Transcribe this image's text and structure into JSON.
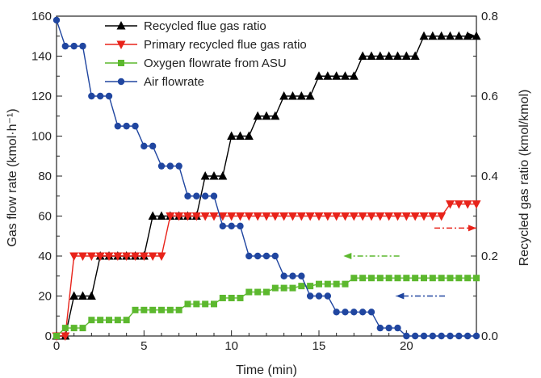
{
  "chart_data": {
    "type": "line",
    "xlabel": "Time (min)",
    "ylabel_left": "Gas flow rate (kmol·h⁻¹)",
    "ylabel_right": "Recycled gas ratio (kmol/kmol)",
    "xlim": [
      0,
      24
    ],
    "ylim_left": [
      0,
      160
    ],
    "ylim_right": [
      0,
      0.8
    ],
    "xticks": [
      "0",
      "5",
      "10",
      "15",
      "20"
    ],
    "yticks_left": [
      "0",
      "20",
      "40",
      "60",
      "80",
      "100",
      "120",
      "140",
      "160"
    ],
    "yticks_right": [
      "0.0",
      "0.2",
      "0.4",
      "0.6",
      "0.8"
    ],
    "legend_position": "top-center",
    "series": [
      {
        "name": "Recycled flue gas ratio",
        "axis": "right",
        "color": "#000000",
        "marker": "triangle-up",
        "x": [
          0,
          0.5,
          1,
          1.5,
          2,
          2.5,
          3,
          3.5,
          4,
          4.5,
          5,
          5.5,
          6,
          6.5,
          7,
          7.5,
          8,
          8.5,
          9,
          9.5,
          10,
          10.5,
          11,
          11.5,
          12,
          12.5,
          13,
          13.5,
          14,
          14.5,
          15,
          15.5,
          16,
          16.5,
          17,
          17.5,
          18,
          18.5,
          19,
          19.5,
          20,
          20.5,
          21,
          21.5,
          22,
          22.5,
          23,
          23.5,
          24
        ],
        "y": [
          0,
          0,
          0.1,
          0.1,
          0.1,
          0.2,
          0.2,
          0.2,
          0.2,
          0.2,
          0.2,
          0.3,
          0.3,
          0.3,
          0.3,
          0.3,
          0.3,
          0.4,
          0.4,
          0.4,
          0.5,
          0.5,
          0.5,
          0.55,
          0.55,
          0.55,
          0.6,
          0.6,
          0.6,
          0.6,
          0.65,
          0.65,
          0.65,
          0.65,
          0.65,
          0.7,
          0.7,
          0.7,
          0.7,
          0.7,
          0.7,
          0.7,
          0.75,
          0.75,
          0.75,
          0.75,
          0.75,
          0.75,
          0.75
        ]
      },
      {
        "name": "Primary recycled flue gas ratio",
        "axis": "right",
        "color": "#e8231a",
        "marker": "triangle-down",
        "x": [
          0,
          0.5,
          1,
          1.5,
          2,
          2.5,
          3,
          3.5,
          4,
          4.5,
          5,
          5.5,
          6,
          6.5,
          7,
          7.5,
          8,
          8.5,
          9,
          9.5,
          10,
          10.5,
          11,
          11.5,
          12,
          12.5,
          13,
          13.5,
          14,
          14.5,
          15,
          15.5,
          16,
          16.5,
          17,
          17.5,
          18,
          18.5,
          19,
          19.5,
          20,
          20.5,
          21,
          21.5,
          22,
          22.5,
          23,
          23.5,
          24
        ],
        "y": [
          0,
          0,
          0.2,
          0.2,
          0.2,
          0.2,
          0.2,
          0.2,
          0.2,
          0.2,
          0.2,
          0.2,
          0.2,
          0.3,
          0.3,
          0.3,
          0.3,
          0.3,
          0.3,
          0.3,
          0.3,
          0.3,
          0.3,
          0.3,
          0.3,
          0.3,
          0.3,
          0.3,
          0.3,
          0.3,
          0.3,
          0.3,
          0.3,
          0.3,
          0.3,
          0.3,
          0.3,
          0.3,
          0.3,
          0.3,
          0.3,
          0.3,
          0.3,
          0.3,
          0.3,
          0.33,
          0.33,
          0.33,
          0.33
        ]
      },
      {
        "name": "Oxygen flowrate from ASU",
        "axis": "left",
        "color": "#5cb82e",
        "marker": "square",
        "x": [
          0,
          0.5,
          1,
          1.5,
          2,
          2.5,
          3,
          3.5,
          4,
          4.5,
          5,
          5.5,
          6,
          6.5,
          7,
          7.5,
          8,
          8.5,
          9,
          9.5,
          10,
          10.5,
          11,
          11.5,
          12,
          12.5,
          13,
          13.5,
          14,
          14.5,
          15,
          15.5,
          16,
          16.5,
          17,
          17.5,
          18,
          18.5,
          19,
          19.5,
          20,
          20.5,
          21,
          21.5,
          22,
          22.5,
          23,
          23.5,
          24
        ],
        "y": [
          0,
          4,
          4,
          4,
          8,
          8,
          8,
          8,
          8,
          13,
          13,
          13,
          13,
          13,
          13,
          16,
          16,
          16,
          16,
          19,
          19,
          19,
          22,
          22,
          22,
          24,
          24,
          24,
          25,
          25,
          26,
          26,
          26,
          26,
          29,
          29,
          29,
          29,
          29,
          29,
          29,
          29,
          29,
          29,
          29,
          29,
          29,
          29,
          29
        ]
      },
      {
        "name": "Air flowrate",
        "axis": "left",
        "color": "#2046a0",
        "marker": "circle",
        "x": [
          0,
          0.5,
          1,
          1.5,
          2,
          2.5,
          3,
          3.5,
          4,
          4.5,
          5,
          5.5,
          6,
          6.5,
          7,
          7.5,
          8,
          8.5,
          9,
          9.5,
          10,
          10.5,
          11,
          11.5,
          12,
          12.5,
          13,
          13.5,
          14,
          14.5,
          15,
          15.5,
          16,
          16.5,
          17,
          17.5,
          18,
          18.5,
          19,
          19.5,
          20,
          20.5,
          21,
          21.5,
          22,
          22.5,
          23,
          23.5,
          24
        ],
        "y": [
          158,
          145,
          145,
          145,
          120,
          120,
          120,
          105,
          105,
          105,
          95,
          95,
          85,
          85,
          85,
          70,
          70,
          70,
          70,
          55,
          55,
          55,
          40,
          40,
          40,
          40,
          30,
          30,
          30,
          20,
          20,
          20,
          12,
          12,
          12,
          12,
          12,
          4,
          4,
          4,
          0,
          0,
          0,
          0,
          0,
          0,
          0,
          0,
          0
        ]
      }
    ],
    "annotations": [
      {
        "type": "arrow",
        "direction": "right",
        "color": "#000000",
        "from": [
          21.6,
          0.75
        ],
        "to": [
          24,
          0.75
        ]
      },
      {
        "type": "arrow",
        "direction": "right",
        "color": "#e8231a",
        "from": [
          21.6,
          0.27
        ],
        "to": [
          24,
          0.27
        ]
      },
      {
        "type": "arrow",
        "direction": "left",
        "color": "#5cb82e",
        "from": [
          19.6,
          0.2
        ],
        "to": [
          16.4,
          0.2
        ]
      },
      {
        "type": "arrow",
        "direction": "left",
        "color": "#2046a0",
        "from": [
          22.2,
          0.1
        ],
        "to": [
          19.4,
          0.1
        ]
      }
    ]
  }
}
